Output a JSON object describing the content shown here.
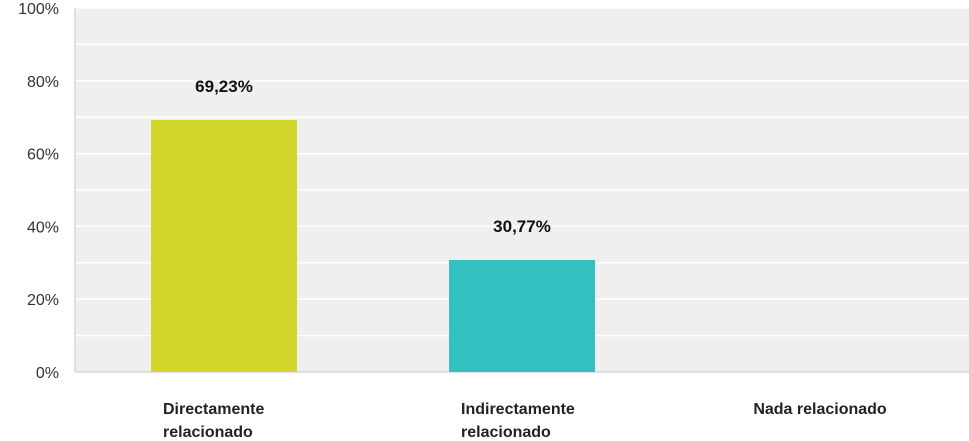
{
  "chart_data": {
    "type": "bar",
    "categories": [
      [
        "Directamente",
        "relacionado"
      ],
      [
        "Indirectamente",
        "relacionado"
      ],
      [
        "Nada relacionado"
      ]
    ],
    "values": [
      69.23,
      30.77,
      0
    ],
    "data_labels": [
      "69,23%",
      "30,77%",
      ""
    ],
    "y_ticks": [
      "0%",
      "20%",
      "40%",
      "60%",
      "80%",
      "100%"
    ],
    "ylim": [
      0,
      100
    ],
    "grid": true,
    "colors": [
      "#d0d62a",
      "#34bfc1",
      "#8bc34a"
    ],
    "plot_background": "#efefef",
    "gridline_color": "#ffffff"
  }
}
